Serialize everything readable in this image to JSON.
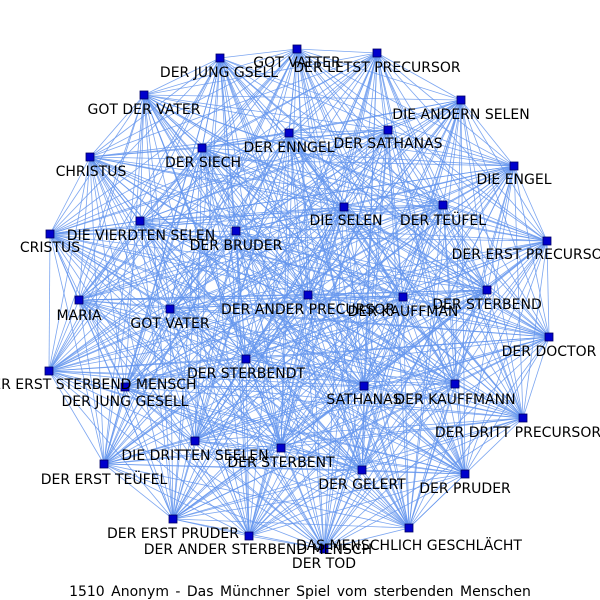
{
  "graph": {
    "caption": "1510 Anonym - Das Münchner Spiel vom sterbenden Menschen",
    "colors": {
      "edge": "#6495ed",
      "node_fill": "#0000cc",
      "node_stroke": "#000066",
      "label": "#000000",
      "background": "#ffffff"
    },
    "nodes": [
      {
        "id": "n0",
        "label": "GOT VATTER"
      },
      {
        "id": "n1",
        "label": "DER LETST PRECURSOR"
      },
      {
        "id": "n2",
        "label": "DER JUNG GSELL"
      },
      {
        "id": "n3",
        "label": "GOT DER VATER"
      },
      {
        "id": "n4",
        "label": "DIE ANDERN SELEN"
      },
      {
        "id": "n5",
        "label": "DER SATHANAS"
      },
      {
        "id": "n6",
        "label": "DER ENNGEL"
      },
      {
        "id": "n7",
        "label": "DER SIECH"
      },
      {
        "id": "n8",
        "label": "CHRISTUS"
      },
      {
        "id": "n9",
        "label": "DIE ENGEL"
      },
      {
        "id": "n10",
        "label": "DIE SELEN"
      },
      {
        "id": "n11",
        "label": "DER TEÜFEL"
      },
      {
        "id": "n12",
        "label": "DIE VIERDTEN SELEN"
      },
      {
        "id": "n13",
        "label": "DER BRUDER"
      },
      {
        "id": "n14",
        "label": "CRISTUS"
      },
      {
        "id": "n15",
        "label": "DER ERST PRECURSOR"
      },
      {
        "id": "n16",
        "label": "DER STERBEND"
      },
      {
        "id": "n17",
        "label": "DER KAUFFMAN"
      },
      {
        "id": "n18",
        "label": "DER ANDER PRECURSOR"
      },
      {
        "id": "n19",
        "label": "MARIA"
      },
      {
        "id": "n20",
        "label": "GOT VATER"
      },
      {
        "id": "n21",
        "label": "DER DOCTOR"
      },
      {
        "id": "n22",
        "label": "DER STERBENDT"
      },
      {
        "id": "n23",
        "label": "DER ERST STERBEND MENSCH"
      },
      {
        "id": "n24",
        "label": "DER JUNG GESELL"
      },
      {
        "id": "n25",
        "label": "SATHANAS"
      },
      {
        "id": "n26",
        "label": "DER KAUFFMANN"
      },
      {
        "id": "n27",
        "label": "DER DRITT PRECURSOR"
      },
      {
        "id": "n28",
        "label": "DIE DRITTEN SEELEN"
      },
      {
        "id": "n29",
        "label": "DER STERBENT"
      },
      {
        "id": "n30",
        "label": "DER ERST TEÜFEL"
      },
      {
        "id": "n31",
        "label": "DER GELERT"
      },
      {
        "id": "n32",
        "label": "DER PRUDER"
      },
      {
        "id": "n33",
        "label": "DER ERST PRUDER"
      },
      {
        "id": "n34",
        "label": "DER ANDER STERBEND MENSCH"
      },
      {
        "id": "n35",
        "label": "DAS MENSCHLICH GESCHLÄCHT"
      },
      {
        "id": "n36",
        "label": "DER TOD"
      }
    ]
  }
}
